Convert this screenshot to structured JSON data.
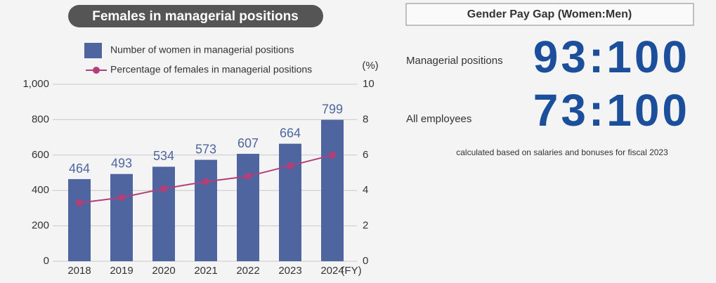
{
  "chart_data": {
    "type": "bar",
    "title": "Females in managerial positions",
    "categories": [
      "2018",
      "2019",
      "2020",
      "2021",
      "2022",
      "2023",
      "2024"
    ],
    "x_unit": "(FY)",
    "y2_unit": "(%)",
    "series": [
      {
        "name": "Number of women in managerial positions",
        "type": "bar",
        "color": "#4f65a0",
        "values": [
          464,
          493,
          534,
          573,
          607,
          664,
          799
        ]
      },
      {
        "name": "Percentage of females in managerial positions",
        "type": "line",
        "axis": "y2",
        "color": "#b23f7a",
        "values": [
          3.3,
          3.6,
          4.1,
          4.5,
          4.8,
          5.4,
          6.0
        ]
      }
    ],
    "ylim": [
      0,
      1000
    ],
    "yticks": [
      0,
      200,
      400,
      600,
      800,
      {
        "value": 1000,
        "label": "1,000"
      }
    ],
    "y2lim": [
      0,
      10
    ],
    "y2ticks": [
      0,
      2,
      4,
      6,
      8,
      10
    ],
    "grid": true
  },
  "pay_gap": {
    "title": "Gender Pay Gap (Women:Men)",
    "rows": [
      {
        "label": "Managerial positions",
        "ratio": "93:100"
      },
      {
        "label": "All employees",
        "ratio": "73:100"
      }
    ],
    "note": "calculated based on salaries and bonuses for fiscal 2023"
  }
}
